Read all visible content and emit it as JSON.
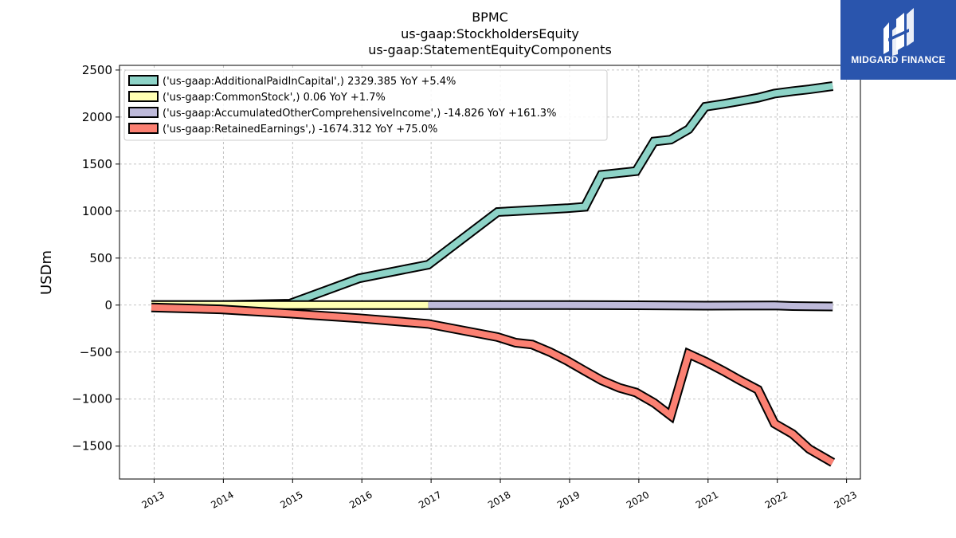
{
  "chart_data": {
    "type": "area",
    "title": [
      "BPMC",
      "us-gaap:StockholdersEquity",
      "us-gaap:StatementEquityComponents"
    ],
    "ylabel": "USDm",
    "xlabel": "",
    "ylim": [
      -1850,
      2550
    ],
    "xlim": [
      2012.5,
      2023.2
    ],
    "yticks": [
      2500,
      2000,
      1500,
      1000,
      500,
      0,
      -500,
      -1000,
      -1500
    ],
    "ytick_labels": [
      "2500",
      "2000",
      "1500",
      "1000",
      "500",
      "0",
      "−500",
      "−1000",
      "−1500"
    ],
    "xticks": [
      2013,
      2014,
      2015,
      2016,
      2017,
      2018,
      2019,
      2020,
      2021,
      2022,
      2023
    ],
    "xtick_labels": [
      "2013",
      "2014",
      "2015",
      "2016",
      "2017",
      "2018",
      "2019",
      "2020",
      "2021",
      "2022",
      "2023"
    ],
    "grid": true,
    "legend_position": "top-left",
    "series": [
      {
        "name": "('us-gaap:AdditionalPaidInCapital',) 2329.385 YoY +5.4%",
        "color": "#8dd3c7",
        "x": [
          2012.96,
          2013.96,
          2014.96,
          2015.96,
          2016.96,
          2017.96,
          2018.96,
          2019.22,
          2019.46,
          2019.96,
          2020.22,
          2020.46,
          2020.72,
          2020.96,
          2021.22,
          2021.46,
          2021.72,
          2021.96,
          2022.22,
          2022.46,
          2022.8
        ],
        "values": [
          0,
          0,
          15,
          285,
          430,
          990,
          1030,
          1045,
          1385,
          1425,
          1740,
          1760,
          1870,
          2110,
          2140,
          2170,
          2205,
          2250,
          2275,
          2295,
          2329.385
        ]
      },
      {
        "name": "('us-gaap:CommonStock',) 0.06 YoY +1.7%",
        "color": "#ffffb3",
        "x": [
          2012.96,
          2016.96
        ],
        "values": [
          0.06,
          0.06
        ]
      },
      {
        "name": "('us-gaap:AccumulatedOtherComprehensiveIncome',) -14.826 YoY +161.3%",
        "color": "#bebada",
        "x": [
          2016.96,
          2017.96,
          2018.96,
          2019.96,
          2020.96,
          2021.96,
          2022.22,
          2022.8
        ],
        "values": [
          0,
          0,
          0,
          -2,
          -6,
          -4,
          -10,
          -14.826
        ]
      },
      {
        "name": "('us-gaap:RetainedEarnings',) -1674.312 YoY +75.0%",
        "color": "#fb8072",
        "x": [
          2012.96,
          2013.96,
          2014.96,
          2015.96,
          2016.96,
          2017.96,
          2018.22,
          2018.46,
          2018.72,
          2018.96,
          2019.22,
          2019.46,
          2019.72,
          2019.96,
          2020.22,
          2020.46,
          2020.72,
          2020.96,
          2021.22,
          2021.46,
          2021.72,
          2021.96,
          2022.22,
          2022.46,
          2022.8
        ],
        "values": [
          -25,
          -45,
          -90,
          -140,
          -200,
          -340,
          -400,
          -420,
          -500,
          -590,
          -700,
          -800,
          -880,
          -930,
          -1040,
          -1175,
          -520,
          -600,
          -700,
          -800,
          -900,
          -1260,
          -1370,
          -1530,
          -1674.312
        ]
      }
    ]
  },
  "logo": {
    "text": "MIDGARD FINANCE"
  }
}
